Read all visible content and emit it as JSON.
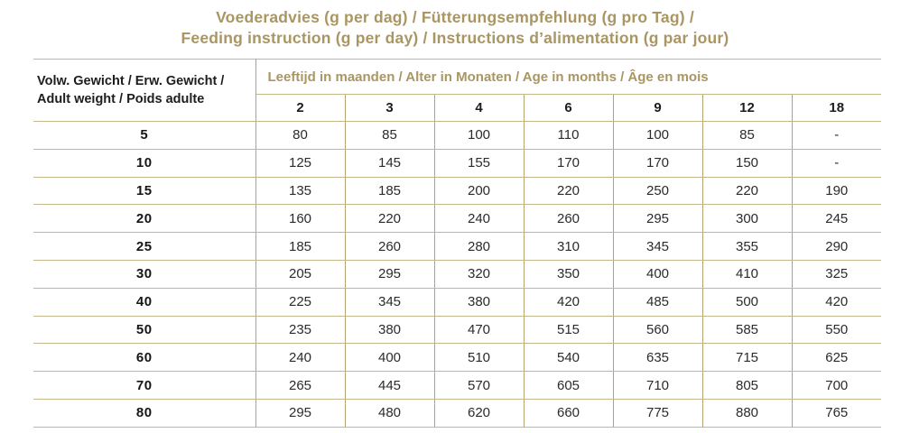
{
  "title": {
    "line1": "Voederadvies (g per dag) / Fütterungsempfehlung (g pro Tag) /",
    "line2": "Feeding instruction (g per day) / Instructions d’alimentation (g par jour)"
  },
  "table": {
    "weight_header_line1": "Volw. Gewicht / Erw. Gewicht /",
    "weight_header_line2": "Adult weight / Poids adulte",
    "age_group_header": "Leeftijd in maanden / Alter in Monaten / Age in months / Âge en mois",
    "age_columns": [
      "2",
      "3",
      "4",
      "6",
      "9",
      "12",
      "18"
    ],
    "rows": [
      {
        "weight": "5",
        "values": [
          "80",
          "85",
          "100",
          "110",
          "100",
          "85",
          "-"
        ]
      },
      {
        "weight": "10",
        "values": [
          "125",
          "145",
          "155",
          "170",
          "170",
          "150",
          "-"
        ]
      },
      {
        "weight": "15",
        "values": [
          "135",
          "185",
          "200",
          "220",
          "250",
          "220",
          "190"
        ]
      },
      {
        "weight": "20",
        "values": [
          "160",
          "220",
          "240",
          "260",
          "295",
          "300",
          "245"
        ]
      },
      {
        "weight": "25",
        "values": [
          "185",
          "260",
          "280",
          "310",
          "345",
          "355",
          "290"
        ]
      },
      {
        "weight": "30",
        "values": [
          "205",
          "295",
          "320",
          "350",
          "400",
          "410",
          "325"
        ]
      },
      {
        "weight": "40",
        "values": [
          "225",
          "345",
          "380",
          "420",
          "485",
          "500",
          "420"
        ]
      },
      {
        "weight": "50",
        "values": [
          "235",
          "380",
          "470",
          "515",
          "560",
          "585",
          "550"
        ]
      },
      {
        "weight": "60",
        "values": [
          "240",
          "400",
          "510",
          "540",
          "635",
          "715",
          "625"
        ]
      },
      {
        "weight": "70",
        "values": [
          "265",
          "445",
          "570",
          "605",
          "710",
          "805",
          "700"
        ]
      },
      {
        "weight": "80",
        "values": [
          "295",
          "480",
          "620",
          "660",
          "775",
          "880",
          "765"
        ]
      }
    ]
  },
  "colors": {
    "gold_text": "#aa9662",
    "line_horizontal": "#c4b88a",
    "line_vertical": "#b3a371",
    "text_black": "#1d1d1b"
  }
}
